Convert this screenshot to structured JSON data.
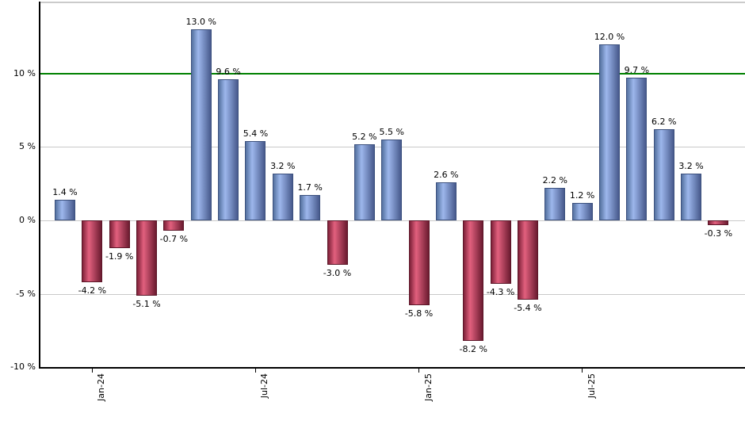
{
  "chart_data": {
    "type": "bar",
    "title": "",
    "description": "Monthly returns bar chart, blue positive and red negative bars",
    "values": [
      1.4,
      -4.2,
      -1.9,
      -5.1,
      -0.7,
      13.0,
      9.6,
      5.4,
      3.2,
      1.7,
      -3.0,
      5.2,
      5.5,
      -5.8,
      2.6,
      -8.2,
      -4.3,
      -5.4,
      2.2,
      1.2,
      12.0,
      9.7,
      6.2,
      3.2,
      -0.3
    ],
    "value_label_suffix": " %",
    "x_ticks": [
      {
        "label": "Jan-24",
        "bar_index": 1
      },
      {
        "label": "Jul-24",
        "bar_index": 7
      },
      {
        "label": "Jan-25",
        "bar_index": 13
      },
      {
        "label": "Jul-25",
        "bar_index": 19
      }
    ],
    "y_ticks": [
      {
        "label": "10 %",
        "value": 10
      },
      {
        "label": "5 %",
        "value": 5
      },
      {
        "label": "0 %",
        "value": 0
      },
      {
        "label": "-5 %",
        "value": -5
      },
      {
        "label": "-10 %",
        "value": -10
      }
    ],
    "ylim": [
      -10,
      15
    ],
    "grid": true,
    "legend": false,
    "reference_line": {
      "value": 10,
      "color": "#008000"
    },
    "colors": {
      "positive_gradient": [
        "#54719f",
        "#9db7ec",
        "#47598c"
      ],
      "positive_border": "#3c517e",
      "negative_gradient": [
        "#7d2038",
        "#e2607e",
        "#6b1b30"
      ],
      "negative_border": "#5c1628",
      "gridline": "#c9c9c9",
      "frame_top": "#cbcbcb",
      "axis": "#000000",
      "label_text": "#000000"
    }
  }
}
